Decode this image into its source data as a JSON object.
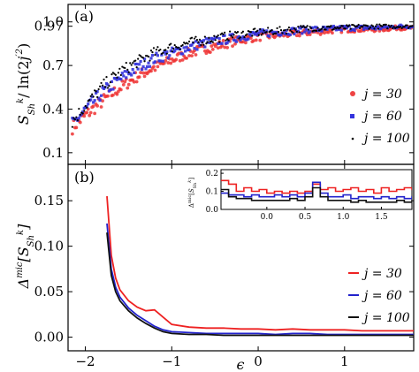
{
  "chart_data": [
    {
      "panel": "(a)",
      "type": "scatter",
      "ylabel": "S^k_Sh / ln(2j'^2)",
      "xlim": [
        -2.2,
        1.8
      ],
      "ylim": [
        0.02,
        1.12
      ],
      "yticks": [
        0.1,
        0.4,
        0.7,
        0.97,
        1.0
      ],
      "ytick_labels": [
        "0.1",
        "0.4",
        "0.7",
        "0.97",
        "1.0"
      ],
      "series": [
        {
          "name": "j = 30",
          "color": "#ee3333",
          "marker": "circle",
          "x": [
            -2.15,
            -2.0,
            -1.8,
            -1.6,
            -1.4,
            -1.2,
            -1.0,
            -0.8,
            -0.6,
            -0.4,
            -0.2,
            0.0,
            0.2,
            0.4,
            0.6,
            0.8,
            1.0,
            1.2,
            1.4,
            1.6,
            1.75
          ],
          "y": [
            0.28,
            0.36,
            0.46,
            0.55,
            0.63,
            0.69,
            0.74,
            0.79,
            0.82,
            0.85,
            0.88,
            0.9,
            0.91,
            0.92,
            0.93,
            0.94,
            0.95,
            0.95,
            0.95,
            0.96,
            0.96
          ]
        },
        {
          "name": "j = 60",
          "color": "#3333dd",
          "marker": "square",
          "x": [
            -2.15,
            -2.0,
            -1.8,
            -1.6,
            -1.4,
            -1.2,
            -1.0,
            -0.8,
            -0.6,
            -0.4,
            -0.2,
            0.0,
            0.2,
            0.4,
            0.6,
            0.8,
            1.0,
            1.2,
            1.4,
            1.6,
            1.75
          ],
          "y": [
            0.3,
            0.4,
            0.52,
            0.61,
            0.69,
            0.75,
            0.79,
            0.83,
            0.86,
            0.88,
            0.9,
            0.92,
            0.93,
            0.94,
            0.95,
            0.95,
            0.96,
            0.96,
            0.96,
            0.97,
            0.97
          ]
        },
        {
          "name": "j = 100",
          "color": "#000000",
          "marker": "dot",
          "x": [
            -2.15,
            -2.0,
            -1.8,
            -1.6,
            -1.4,
            -1.2,
            -1.0,
            -0.8,
            -0.6,
            -0.4,
            -0.2,
            0.0,
            0.2,
            0.4,
            0.6,
            0.8,
            1.0,
            1.2,
            1.4,
            1.6,
            1.75
          ],
          "y": [
            0.32,
            0.43,
            0.56,
            0.66,
            0.73,
            0.79,
            0.83,
            0.86,
            0.88,
            0.9,
            0.92,
            0.93,
            0.94,
            0.95,
            0.96,
            0.96,
            0.96,
            0.97,
            0.97,
            0.97,
            0.97
          ]
        }
      ],
      "legend": "right"
    },
    {
      "panel": "(b)",
      "type": "line",
      "xlabel": "ε",
      "ylabel": "Δ^mic[S^k_Sh]",
      "xlim": [
        -2.2,
        1.8
      ],
      "ylim": [
        -0.015,
        0.19
      ],
      "xticks": [
        -2,
        -1,
        0,
        1
      ],
      "xtick_labels": [
        "−2",
        "−1",
        "0",
        "1"
      ],
      "yticks": [
        0.0,
        0.05,
        0.1,
        0.15
      ],
      "ytick_labels": [
        "0.00",
        "0.05",
        "0.10",
        "0.15"
      ],
      "series": [
        {
          "name": "j = 30",
          "color": "#ee2222",
          "x": [
            -1.75,
            -1.7,
            -1.65,
            -1.6,
            -1.5,
            -1.4,
            -1.3,
            -1.2,
            -1.1,
            -1.0,
            -0.8,
            -0.6,
            -0.4,
            -0.2,
            0.0,
            0.2,
            0.4,
            0.6,
            0.8,
            1.0,
            1.2,
            1.4,
            1.6,
            1.8
          ],
          "y": [
            0.155,
            0.09,
            0.065,
            0.052,
            0.04,
            0.033,
            0.029,
            0.03,
            0.022,
            0.014,
            0.011,
            0.01,
            0.01,
            0.009,
            0.009,
            0.008,
            0.009,
            0.008,
            0.008,
            0.008,
            0.007,
            0.007,
            0.007,
            0.007
          ]
        },
        {
          "name": "j = 60",
          "color": "#2222cc",
          "x": [
            -1.75,
            -1.7,
            -1.65,
            -1.6,
            -1.5,
            -1.4,
            -1.3,
            -1.2,
            -1.1,
            -1.0,
            -0.8,
            -0.6,
            -0.4,
            -0.2,
            0.0,
            0.2,
            0.4,
            0.6,
            0.8,
            1.0,
            1.2,
            1.4,
            1.6,
            1.8
          ],
          "y": [
            0.125,
            0.075,
            0.055,
            0.044,
            0.032,
            0.024,
            0.018,
            0.012,
            0.008,
            0.006,
            0.005,
            0.004,
            0.004,
            0.004,
            0.004,
            0.003,
            0.004,
            0.004,
            0.003,
            0.003,
            0.003,
            0.003,
            0.003,
            0.003
          ]
        },
        {
          "name": "j = 100",
          "color": "#111111",
          "x": [
            -1.75,
            -1.7,
            -1.65,
            -1.6,
            -1.5,
            -1.4,
            -1.3,
            -1.2,
            -1.1,
            -1.0,
            -0.8,
            -0.6,
            -0.4,
            -0.2,
            0.0,
            0.2,
            0.4,
            0.6,
            0.8,
            1.0,
            1.2,
            1.4,
            1.6,
            1.8
          ],
          "y": [
            0.115,
            0.068,
            0.05,
            0.04,
            0.029,
            0.021,
            0.015,
            0.01,
            0.006,
            0.004,
            0.003,
            0.003,
            0.002,
            0.002,
            0.002,
            0.002,
            0.002,
            0.002,
            0.002,
            0.002,
            0.002,
            0.002,
            0.002,
            0.002
          ]
        }
      ],
      "legend": "right",
      "inset": {
        "type": "line",
        "ylabel": "Δ^mic[S^k_Sh]",
        "xlim": [
          -0.6,
          1.9
        ],
        "ylim": [
          0.0,
          0.22
        ],
        "xticks": [
          0.0,
          0.5,
          1.0,
          1.5
        ],
        "xtick_labels": [
          "0.0",
          "0.5",
          "1.0",
          "1.5"
        ],
        "yticks": [
          0.0,
          0.1,
          0.2
        ],
        "ytick_labels": [
          "0.0",
          "0.1",
          "0.2"
        ],
        "series": [
          {
            "name": "j = 30",
            "color": "#ee2222",
            "x": [
              -0.6,
              -0.5,
              -0.4,
              -0.3,
              -0.2,
              -0.1,
              0.0,
              0.1,
              0.2,
              0.3,
              0.4,
              0.5,
              0.6,
              0.7,
              0.8,
              0.9,
              1.0,
              1.1,
              1.2,
              1.3,
              1.4,
              1.5,
              1.6,
              1.7,
              1.8,
              1.9
            ],
            "y": [
              0.16,
              0.14,
              0.1,
              0.12,
              0.1,
              0.11,
              0.09,
              0.1,
              0.09,
              0.1,
              0.09,
              0.1,
              0.14,
              0.11,
              0.12,
              0.1,
              0.11,
              0.12,
              0.1,
              0.11,
              0.09,
              0.12,
              0.1,
              0.11,
              0.12,
              0.11
            ]
          },
          {
            "name": "j = 60",
            "color": "#2222cc",
            "x": [
              -0.6,
              -0.5,
              -0.4,
              -0.3,
              -0.2,
              -0.1,
              0.0,
              0.1,
              0.2,
              0.3,
              0.4,
              0.5,
              0.6,
              0.7,
              0.8,
              0.9,
              1.0,
              1.1,
              1.2,
              1.3,
              1.4,
              1.5,
              1.6,
              1.7,
              1.8,
              1.9
            ],
            "y": [
              0.09,
              0.08,
              0.08,
              0.07,
              0.08,
              0.07,
              0.07,
              0.08,
              0.07,
              0.08,
              0.07,
              0.09,
              0.15,
              0.09,
              0.07,
              0.07,
              0.08,
              0.06,
              0.07,
              0.07,
              0.06,
              0.07,
              0.06,
              0.07,
              0.06,
              0.07
            ]
          },
          {
            "name": "j = 100",
            "color": "#111111",
            "x": [
              -0.6,
              -0.5,
              -0.4,
              -0.3,
              -0.2,
              -0.1,
              0.0,
              0.1,
              0.2,
              0.3,
              0.4,
              0.5,
              0.6,
              0.7,
              0.8,
              0.9,
              1.0,
              1.1,
              1.2,
              1.3,
              1.4,
              1.5,
              1.6,
              1.7,
              1.8,
              1.9
            ],
            "y": [
              0.11,
              0.07,
              0.06,
              0.06,
              0.05,
              0.05,
              0.05,
              0.05,
              0.05,
              0.06,
              0.05,
              0.07,
              0.12,
              0.07,
              0.05,
              0.05,
              0.05,
              0.04,
              0.05,
              0.04,
              0.04,
              0.04,
              0.04,
              0.05,
              0.04,
              0.05
            ]
          }
        ]
      }
    }
  ],
  "legend_labels": {
    "a": [
      "j = 30",
      "j = 60",
      "j = 100"
    ],
    "b": [
      "j = 30",
      "j = 60",
      "j = 100"
    ]
  }
}
